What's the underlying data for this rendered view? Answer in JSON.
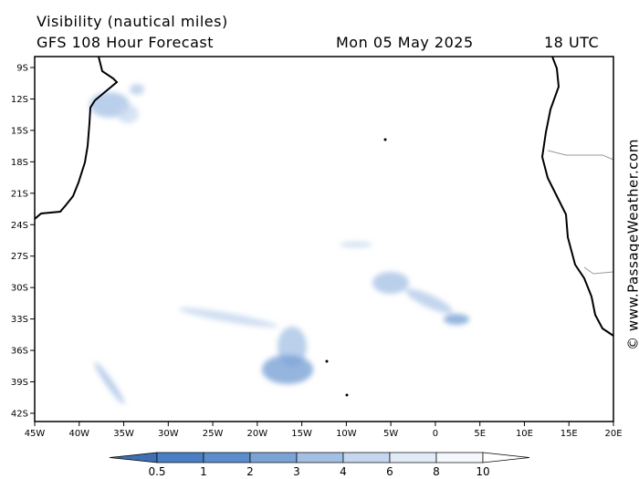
{
  "header": {
    "title": "Visibility (nautical miles)",
    "subtitle": "GFS 108 Hour Forecast",
    "date": "Mon 05 May 2025",
    "time": "18 UTC"
  },
  "map": {
    "lat_labels": [
      "9S",
      "12S",
      "15S",
      "18S",
      "21S",
      "24S",
      "27S",
      "30S",
      "33S",
      "36S",
      "39S",
      "42S"
    ],
    "lon_labels": [
      "45W",
      "40W",
      "35W",
      "30W",
      "25W",
      "20W",
      "15W",
      "10W",
      "5W",
      "0",
      "5E",
      "10E",
      "15E",
      "20E"
    ]
  },
  "legend": {
    "labels": [
      "0.5",
      "1",
      "2",
      "3",
      "4",
      "6",
      "8",
      "10"
    ]
  },
  "watermark": "© www.PassageWeather.com"
}
